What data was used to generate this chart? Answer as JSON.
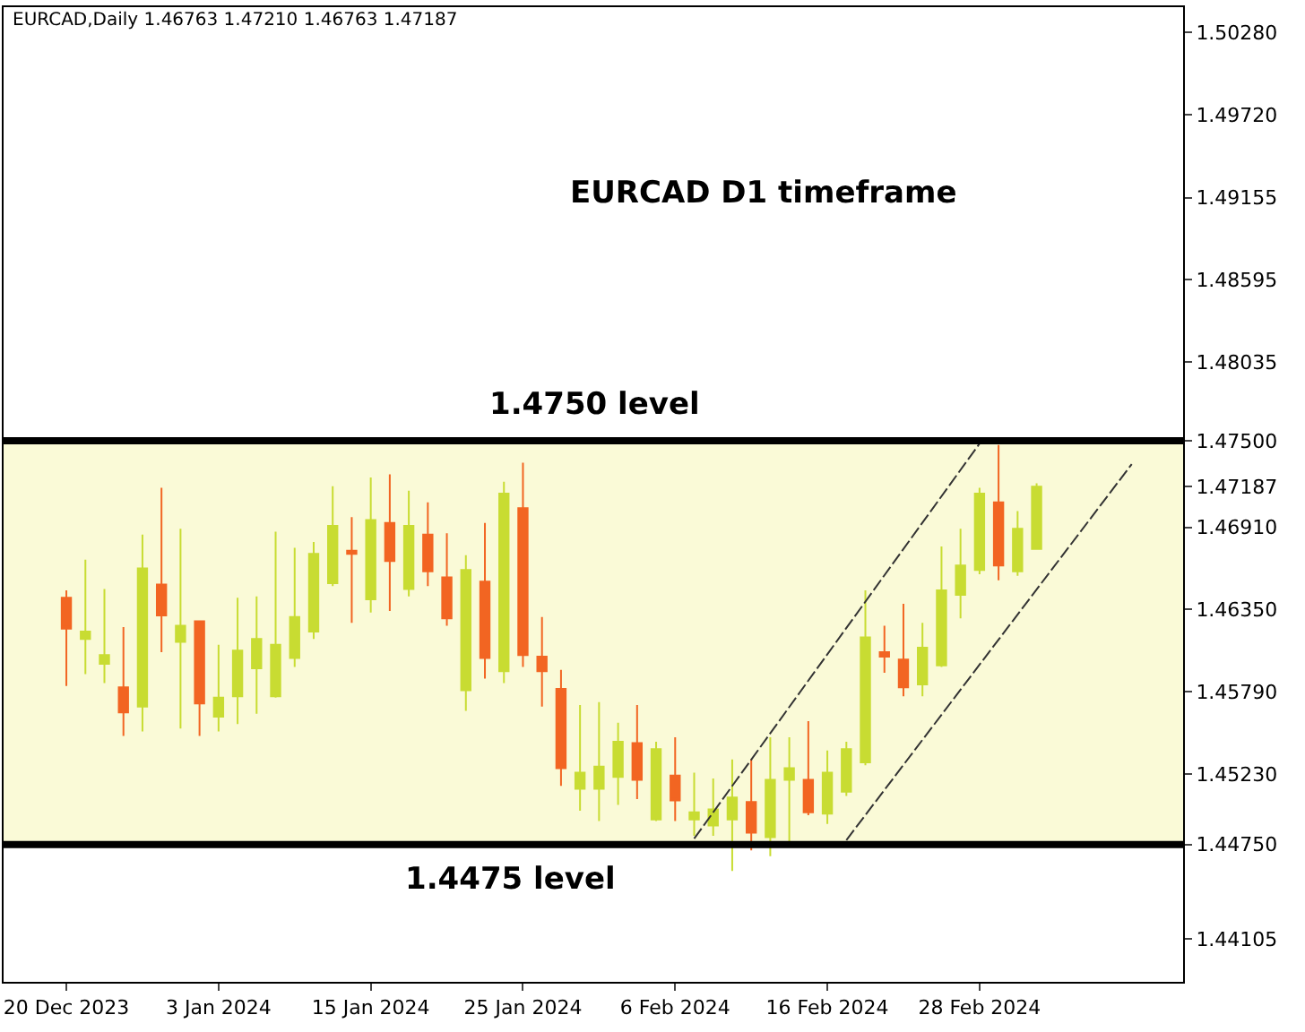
{
  "chart_data": {
    "type": "candlestick",
    "title": "EURCAD,Daily 1.46763 1.47210 1.46763 1.47187",
    "annotations": [
      "EURCAD D1 timeframe"
    ],
    "categories": [
      "20 Dec 2023",
      null,
      null,
      null,
      null,
      null,
      null,
      null,
      "3 Jan 2024",
      null,
      null,
      null,
      null,
      null,
      null,
      null,
      "15 Jan 2024",
      null,
      null,
      null,
      null,
      null,
      null,
      null,
      "25 Jan 2024",
      null,
      null,
      null,
      null,
      null,
      null,
      null,
      "6 Feb 2024",
      null,
      null,
      null,
      null,
      null,
      null,
      null,
      "16 Feb 2024",
      null,
      null,
      null,
      null,
      null,
      null,
      null,
      "28 Feb 2024",
      null,
      null,
      null,
      null,
      null,
      null,
      null,
      null,
      null,
      null
    ],
    "ohlc": [
      [
        1.4643,
        1.4648,
        1.4583,
        1.4622
      ],
      [
        1.4615,
        1.4669,
        1.4591,
        1.462
      ],
      [
        1.4598,
        1.4649,
        1.4585,
        1.4604
      ],
      [
        1.4582,
        1.4623,
        1.4549,
        1.4565
      ],
      [
        1.4569,
        1.4686,
        1.4552,
        1.4663
      ],
      [
        1.4652,
        1.4718,
        1.4606,
        1.4631
      ],
      [
        1.4613,
        1.469,
        1.4554,
        1.4624
      ],
      [
        1.4627,
        1.4627,
        1.4549,
        1.4571
      ],
      [
        1.4562,
        1.4611,
        1.4552,
        1.4575
      ],
      [
        1.4576,
        1.4643,
        1.4557,
        1.4607
      ],
      [
        1.4595,
        1.4644,
        1.4564,
        1.4615
      ],
      [
        1.4576,
        1.4688,
        1.4575,
        1.4611
      ],
      [
        1.4602,
        1.4677,
        1.4596,
        1.463
      ],
      [
        1.462,
        1.4681,
        1.4615,
        1.4673
      ],
      [
        1.4653,
        1.4719,
        1.4651,
        1.4692
      ],
      [
        1.4675,
        1.4698,
        1.4626,
        1.4673
      ],
      [
        1.4642,
        1.4725,
        1.4633,
        1.4696
      ],
      [
        1.4694,
        1.4727,
        1.4634,
        1.4668
      ],
      [
        1.4649,
        1.4716,
        1.4644,
        1.4692
      ],
      [
        1.4686,
        1.4708,
        1.4651,
        1.4661
      ],
      [
        1.4657,
        1.4687,
        1.4624,
        1.4629
      ],
      [
        1.458,
        1.4672,
        1.4566,
        1.4662
      ],
      [
        1.4654,
        1.4694,
        1.4588,
        1.4602
      ],
      [
        1.4593,
        1.4722,
        1.4585,
        1.4714
      ],
      [
        1.4704,
        1.4735,
        1.4596,
        1.4604
      ],
      [
        1.4603,
        1.463,
        1.4569,
        1.4593
      ],
      [
        1.4581,
        1.4594,
        1.4515,
        1.4527
      ],
      [
        1.4513,
        1.457,
        1.4498,
        1.4524
      ],
      [
        1.4513,
        1.4572,
        1.4491,
        1.4528
      ],
      [
        1.4521,
        1.4558,
        1.4502,
        1.4545
      ],
      [
        1.4544,
        1.457,
        1.4506,
        1.4519
      ],
      [
        1.4492,
        1.4545,
        1.4491,
        1.454
      ],
      [
        1.4522,
        1.4548,
        1.4491,
        1.4505
      ],
      [
        1.4492,
        1.4524,
        1.4481,
        1.4497
      ],
      [
        1.4488,
        1.452,
        1.4481,
        1.4499
      ],
      [
        1.4492,
        1.4533,
        1.4457,
        1.4507
      ],
      [
        1.4504,
        1.4533,
        1.4471,
        1.4483
      ],
      [
        1.448,
        1.4548,
        1.4467,
        1.4519
      ],
      [
        1.4519,
        1.4548,
        1.4477,
        1.4527
      ],
      [
        1.4519,
        1.4559,
        1.4495,
        1.4497
      ],
      [
        1.4496,
        1.4539,
        1.4489,
        1.4524
      ],
      [
        1.4511,
        1.4545,
        1.4508,
        1.454
      ],
      [
        1.4531,
        1.4648,
        1.4529,
        1.4616
      ],
      [
        1.4606,
        1.4624,
        1.4592,
        1.4603
      ],
      [
        1.4601,
        1.4639,
        1.4576,
        1.4582
      ],
      [
        1.4584,
        1.4626,
        1.4576,
        1.4609
      ],
      [
        1.4597,
        1.4678,
        1.4596,
        1.4648
      ],
      [
        1.4645,
        1.469,
        1.4629,
        1.4665
      ],
      [
        1.4662,
        1.4718,
        1.4659,
        1.4714
      ],
      [
        1.4708,
        1.4747,
        1.4655,
        1.4665
      ],
      [
        1.4661,
        1.4702,
        1.4658,
        1.469
      ],
      [
        1.46763,
        1.4721,
        1.46763,
        1.47187
      ],
      null,
      null,
      null,
      null,
      null,
      null,
      null
    ],
    "colors": [
      "#f26522",
      "#c8dc32",
      "#c8dc32",
      "#f26522",
      "#c8dc32",
      "#f26522",
      "#c8dc32",
      "#f26522",
      "#c8dc32",
      "#c8dc32",
      "#c8dc32",
      "#c8dc32",
      "#c8dc32",
      "#c8dc32",
      "#c8dc32",
      "#f26522",
      "#c8dc32",
      "#f26522",
      "#c8dc32",
      "#f26522",
      "#f26522",
      "#c8dc32",
      "#f26522",
      "#c8dc32",
      "#f26522",
      "#f26522",
      "#f26522",
      "#c8dc32",
      "#c8dc32",
      "#c8dc32",
      "#f26522",
      "#c8dc32",
      "#f26522",
      "#c8dc32",
      "#c8dc32",
      "#c8dc32",
      "#f26522",
      "#c8dc32",
      "#c8dc32",
      "#f26522",
      "#c8dc32",
      "#c8dc32",
      "#c8dc32",
      "#f26522",
      "#f26522",
      "#c8dc32",
      "#c8dc32",
      "#c8dc32",
      "#c8dc32",
      "#f26522",
      "#c8dc32",
      "#c8dc32",
      null,
      null,
      null,
      null,
      null,
      null,
      null
    ],
    "series": [
      {
        "type": "line",
        "color": "#333333",
        "line_style": "dashed",
        "values": [
          null,
          null,
          null,
          null,
          null,
          null,
          null,
          null,
          null,
          null,
          null,
          null,
          null,
          null,
          null,
          null,
          null,
          null,
          null,
          null,
          null,
          null,
          null,
          null,
          null,
          null,
          null,
          null,
          null,
          null,
          null,
          null,
          null,
          1.4479,
          null,
          null,
          null,
          null,
          null,
          null,
          null,
          null,
          null,
          null,
          null,
          null,
          null,
          null,
          1.4748,
          null,
          null,
          null,
          null,
          null,
          null,
          null,
          null,
          null,
          null
        ]
      },
      {
        "type": "line",
        "color": "#333333",
        "line_style": "dashed",
        "values": [
          null,
          null,
          null,
          null,
          null,
          null,
          null,
          null,
          null,
          null,
          null,
          null,
          null,
          null,
          null,
          null,
          null,
          null,
          null,
          null,
          null,
          null,
          null,
          null,
          null,
          null,
          null,
          null,
          null,
          null,
          null,
          null,
          null,
          null,
          null,
          null,
          null,
          null,
          null,
          null,
          null,
          1.4478,
          null,
          null,
          null,
          null,
          null,
          null,
          null,
          null,
          null,
          null,
          null,
          null,
          null,
          null,
          1.4734,
          null,
          null
        ]
      }
    ],
    "ref_lines": [
      {
        "axis": "y",
        "value": 1.475,
        "label": "1.4750 level",
        "color": "#000000"
      },
      {
        "axis": "y",
        "value": 1.4475,
        "label": "1.4475 level",
        "color": "#000000"
      }
    ],
    "bands": [
      {
        "axis": "y",
        "from": 1.4475,
        "to": 1.475,
        "color": "#fafad7"
      }
    ],
    "ylim": [
      1.43815,
      1.50452
    ],
    "yticks": [
      {
        "value": 1.5028,
        "label": "1.50280"
      },
      {
        "value": 1.4972,
        "label": "1.49720"
      },
      {
        "value": 1.49155,
        "label": "1.49155"
      },
      {
        "value": 1.48595,
        "label": "1.48595"
      },
      {
        "value": 1.48035,
        "label": "1.48035"
      },
      {
        "value": 1.475,
        "label": "1.47500"
      },
      {
        "value": 1.47187,
        "label": "1.47187"
      },
      {
        "value": 1.4691,
        "label": "1.46910"
      },
      {
        "value": 1.4635,
        "label": "1.46350"
      },
      {
        "value": 1.4579,
        "label": "1.45790"
      },
      {
        "value": 1.4523,
        "label": "1.45230"
      },
      {
        "value": 1.4475,
        "label": "1.44750"
      },
      {
        "value": 1.44105,
        "label": "1.44105"
      }
    ],
    "grid": false
  }
}
